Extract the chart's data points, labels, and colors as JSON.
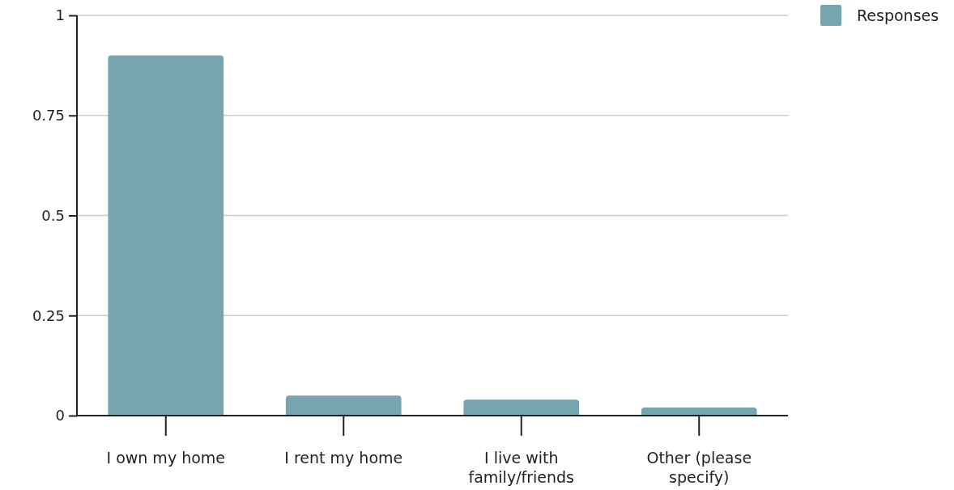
{
  "chart_data": {
    "type": "bar",
    "categories": [
      "I own my home",
      "I rent my home",
      "I live with family/friends",
      "Other (please specify)"
    ],
    "series": [
      {
        "name": "Responses",
        "color": "#76a5af",
        "values": [
          0.9,
          0.05,
          0.04,
          0.02
        ]
      }
    ],
    "ylim": [
      0,
      1
    ],
    "yticks": [
      0,
      0.25,
      0.5,
      0.75,
      1
    ],
    "grid": "y",
    "legend": "top right"
  }
}
